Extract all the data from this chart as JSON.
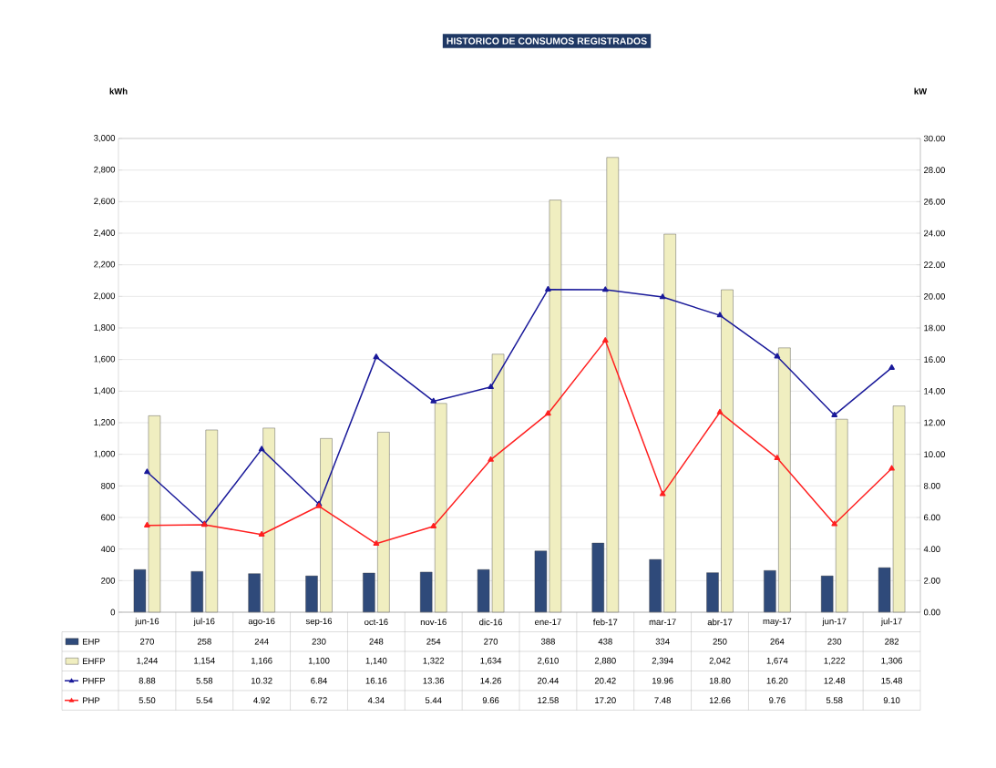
{
  "chart_data": {
    "type": "bar",
    "title": "HISTORICO DE CONSUMOS REGISTRADOS",
    "ylabel": "kWh",
    "y2label": "kW",
    "categories": [
      "jun-16",
      "jul-16",
      "ago-16",
      "sep-16",
      "oct-16",
      "nov-16",
      "dic-16",
      "ene-17",
      "feb-17",
      "mar-17",
      "abr-17",
      "may-17",
      "jun-17",
      "jul-17"
    ],
    "series": [
      {
        "name": "EHP",
        "color": "#2f4a7a",
        "values": [
          270,
          258,
          244,
          230,
          248,
          254,
          270,
          388,
          438,
          334,
          250,
          264,
          230,
          282
        ],
        "value_labels": [
          "270",
          "258",
          "244",
          "230",
          "248",
          "254",
          "270",
          "388",
          "438",
          "334",
          "250",
          "264",
          "230",
          "282"
        ]
      },
      {
        "name": "EHFP",
        "color": "#f0eec0",
        "values": [
          1244,
          1154,
          1166,
          1100,
          1140,
          1322,
          1634,
          2610,
          2880,
          2394,
          2042,
          1674,
          1222,
          1306
        ],
        "value_labels": [
          "1,244",
          "1,154",
          "1,166",
          "1,100",
          "1,140",
          "1,322",
          "1,634",
          "2,610",
          "2,880",
          "2,394",
          "2,042",
          "1,674",
          "1,222",
          "1,306"
        ]
      },
      {
        "name": "PHFP",
        "type": "line",
        "axis": "y2",
        "color": "#1a1a9a",
        "values": [
          8.88,
          5.58,
          10.32,
          6.84,
          16.16,
          13.36,
          14.26,
          20.44,
          20.42,
          19.96,
          18.8,
          16.2,
          12.48,
          15.48
        ],
        "value_labels": [
          "8.88",
          "5.58",
          "10.32",
          "6.84",
          "16.16",
          "13.36",
          "14.26",
          "20.44",
          "20.42",
          "19.96",
          "18.80",
          "16.20",
          "12.48",
          "15.48"
        ]
      },
      {
        "name": "PHP",
        "type": "line",
        "axis": "y2",
        "color": "#ff2020",
        "values": [
          5.5,
          5.54,
          4.92,
          6.72,
          4.34,
          5.44,
          9.66,
          12.58,
          17.2,
          7.48,
          12.66,
          9.76,
          5.58,
          9.1
        ],
        "value_labels": [
          "5.50",
          "5.54",
          "4.92",
          "6.72",
          "4.34",
          "5.44",
          "9.66",
          "12.58",
          "17.20",
          "7.48",
          "12.66",
          "9.76",
          "5.58",
          "9.10"
        ]
      }
    ],
    "ylim": [
      0,
      3000
    ],
    "yticks": [
      0,
      200,
      400,
      600,
      800,
      {
        "value": 1000,
        "label": "1,000"
      },
      {
        "value": 1200,
        "label": "1,200"
      },
      {
        "value": 1400,
        "label": "1,400"
      },
      {
        "value": 1600,
        "label": "1,600"
      },
      {
        "value": 1800,
        "label": "1,800"
      },
      {
        "value": 2000,
        "label": "2,000"
      },
      {
        "value": 2200,
        "label": "2,200"
      },
      {
        "value": 2400,
        "label": "2,400"
      },
      {
        "value": 2600,
        "label": "2,600"
      },
      {
        "value": 2800,
        "label": "2,800"
      },
      {
        "value": 3000,
        "label": "3,000"
      }
    ],
    "y2lim": [
      0,
      30
    ],
    "y2ticks": [
      {
        "value": 0,
        "label": "0.00"
      },
      {
        "value": 2,
        "label": "2.00"
      },
      {
        "value": 4,
        "label": "4.00"
      },
      {
        "value": 6,
        "label": "6.00"
      },
      {
        "value": 8,
        "label": "8.00"
      },
      {
        "value": 10,
        "label": "10.00"
      },
      {
        "value": 12,
        "label": "12.00"
      },
      {
        "value": 14,
        "label": "14.00"
      },
      {
        "value": 16,
        "label": "16.00"
      },
      {
        "value": 18,
        "label": "18.00"
      },
      {
        "value": 20,
        "label": "20.00"
      },
      {
        "value": 22,
        "label": "22.00"
      },
      {
        "value": 24,
        "label": "24.00"
      },
      {
        "value": 26,
        "label": "26.00"
      },
      {
        "value": 28,
        "label": "28.00"
      },
      {
        "value": 30,
        "label": "30.00"
      }
    ],
    "grid": "y",
    "legend": "bottom",
    "marker": "triangle",
    "line_style": "solid"
  }
}
